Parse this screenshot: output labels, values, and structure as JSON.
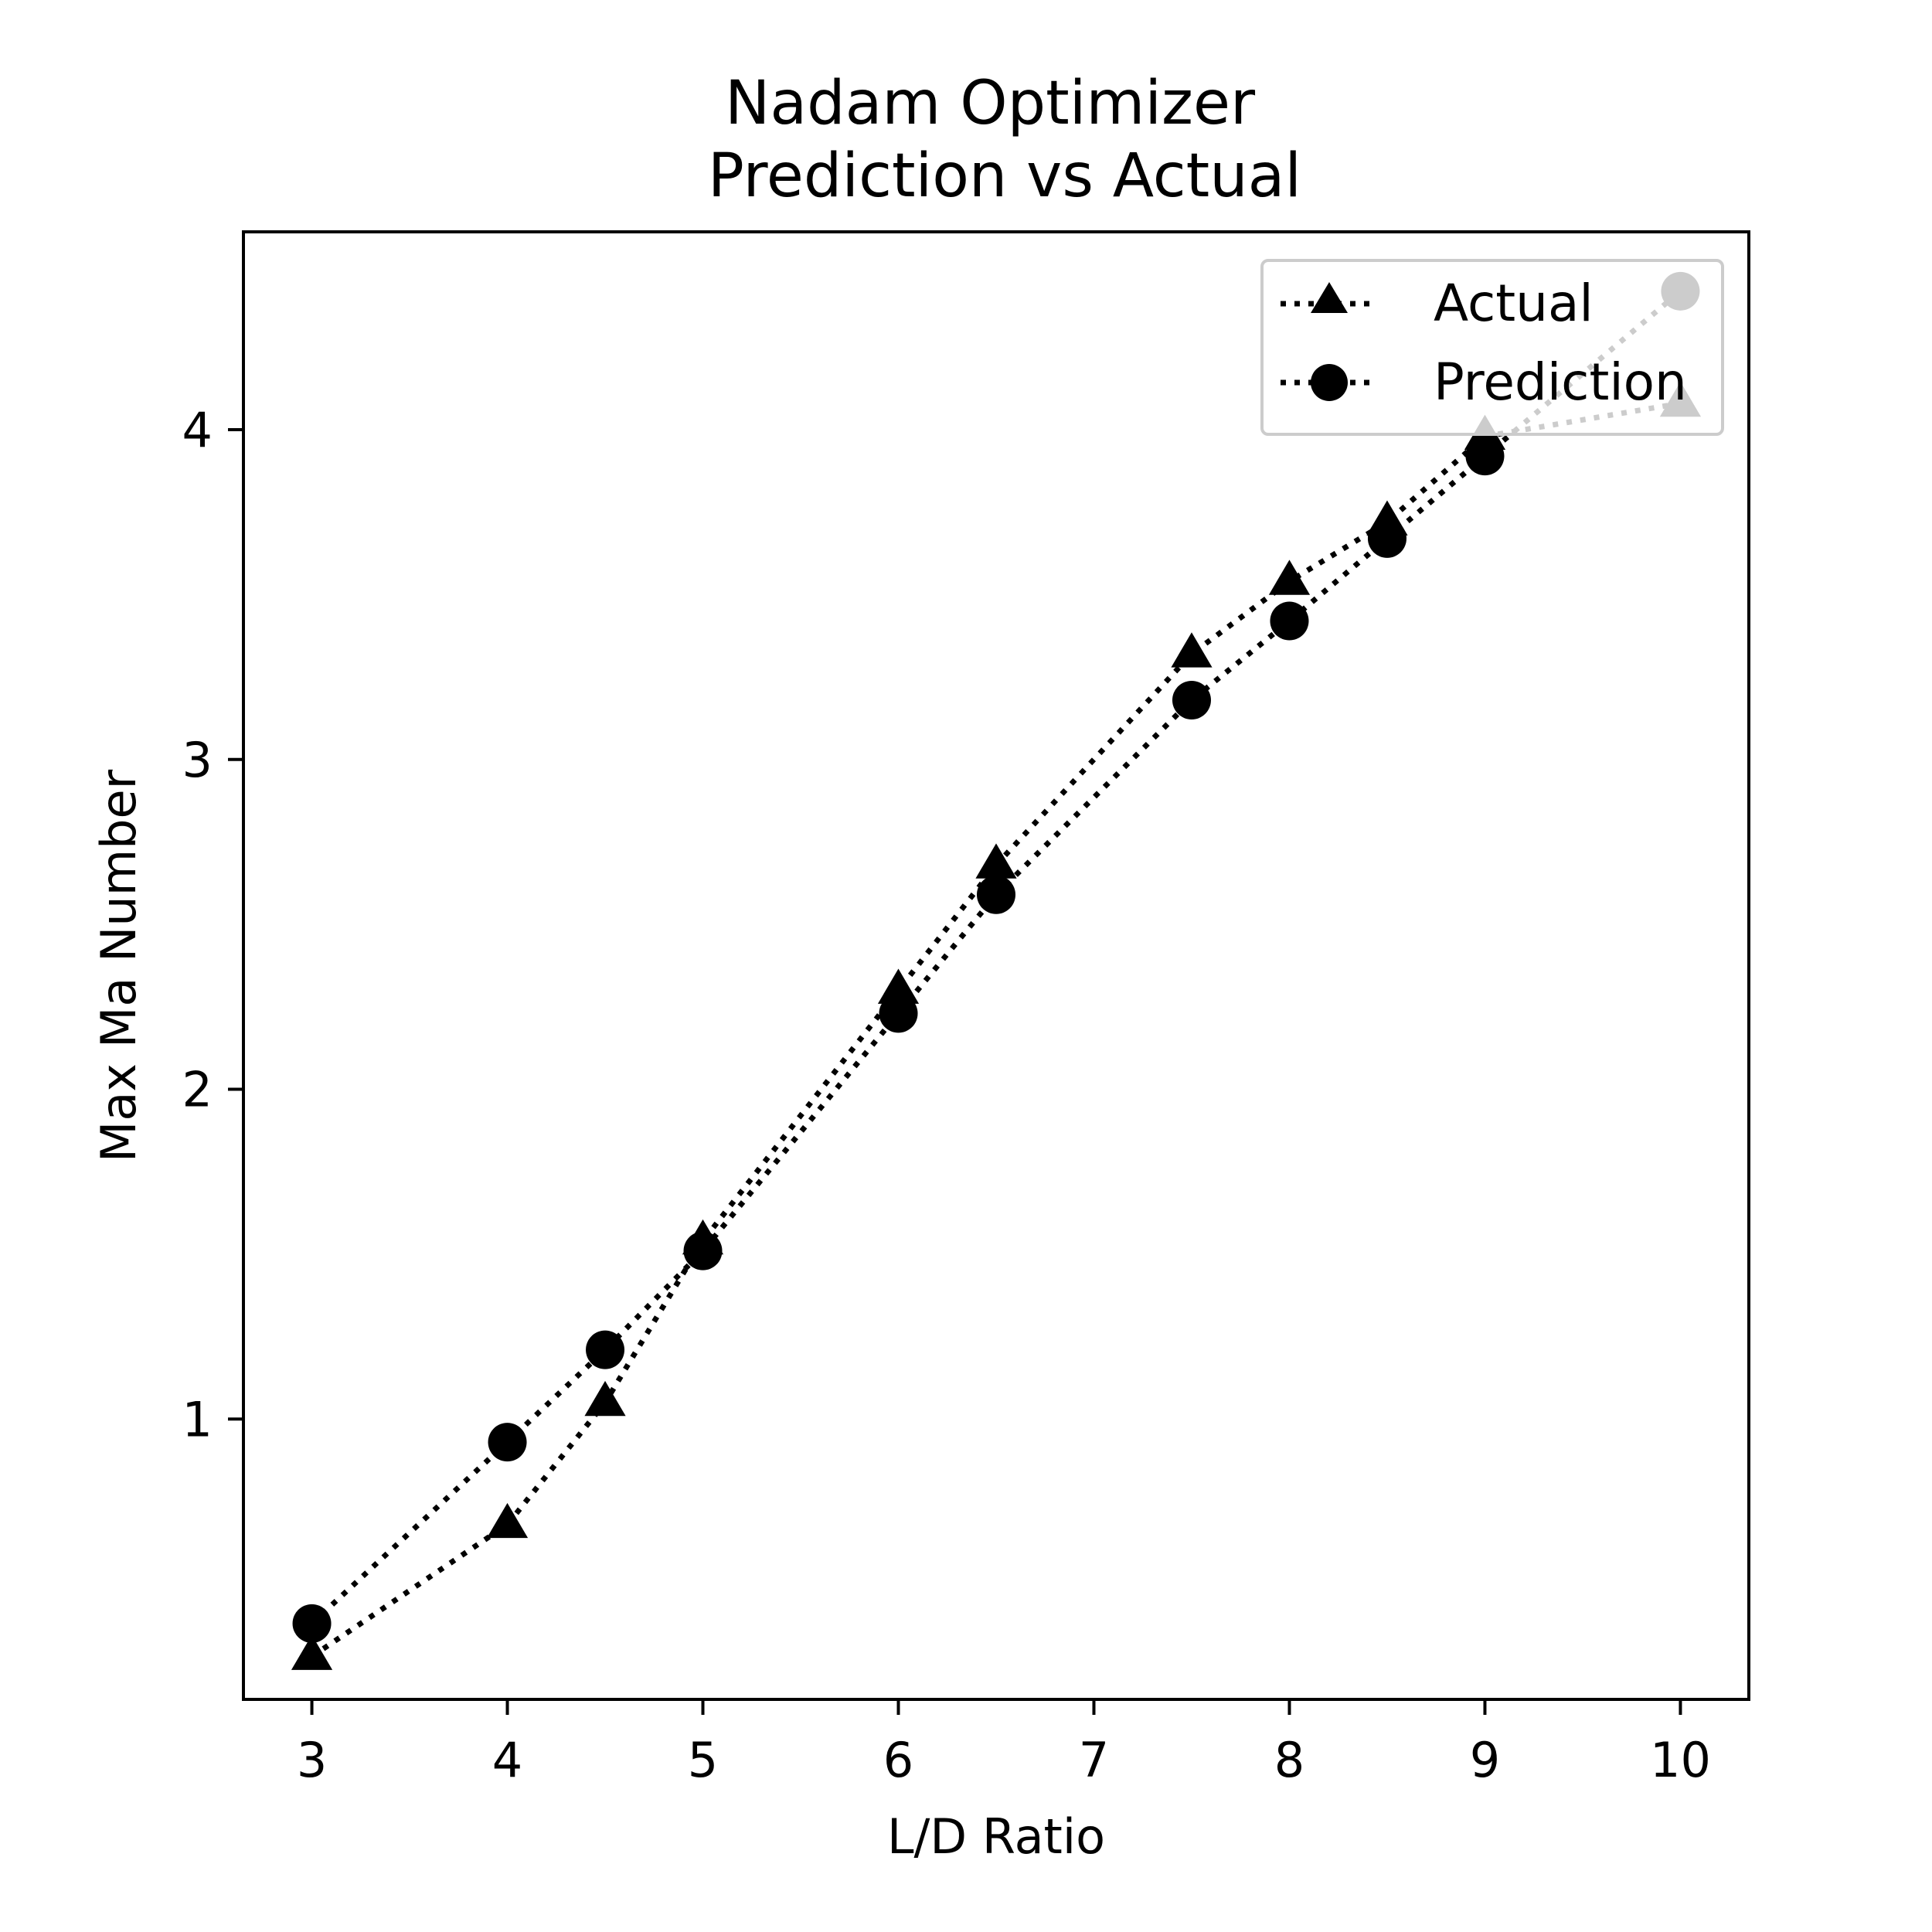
{
  "chart_data": {
    "type": "line",
    "title_lines": [
      "Nadam Optimizer",
      "Prediction vs Actual"
    ],
    "xlabel": "L/D Ratio",
    "ylabel": "Max Ma Number",
    "xlim": [
      2.65,
      10.35
    ],
    "ylim": [
      0.15,
      4.6
    ],
    "xticks": [
      3,
      4,
      5,
      6,
      7,
      8,
      9,
      10
    ],
    "yticks": [
      1,
      2,
      3,
      4
    ],
    "grid": false,
    "legend_position": "top-right",
    "x": [
      3,
      4,
      4.5,
      5,
      6,
      6.5,
      7.5,
      8,
      8.5,
      9,
      10
    ],
    "series": [
      {
        "name": "Actual",
        "marker": "triangle",
        "linestyle": "dotted",
        "color": "#000000",
        "values": [
          0.28,
          0.68,
          1.05,
          1.54,
          2.3,
          2.68,
          3.32,
          3.54,
          3.72,
          3.98,
          4.08
        ]
      },
      {
        "name": "Prediction",
        "marker": "circle",
        "linestyle": "dotted",
        "color": "#000000",
        "values": [
          0.38,
          0.93,
          1.21,
          1.51,
          2.23,
          2.59,
          3.18,
          3.42,
          3.67,
          3.92,
          4.42
        ]
      }
    ]
  }
}
